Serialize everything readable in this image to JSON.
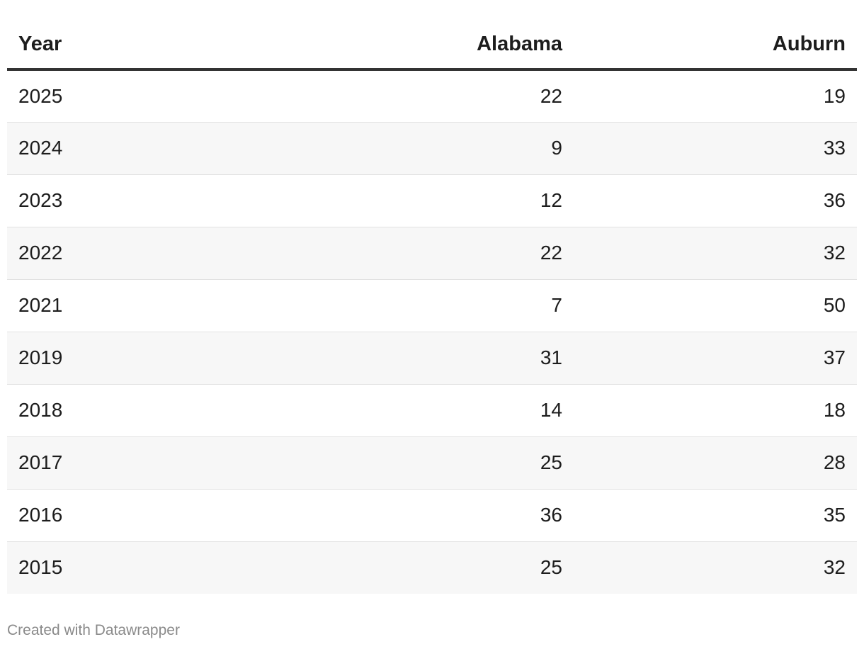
{
  "chart_data": {
    "type": "table",
    "columns": [
      "Year",
      "Alabama",
      "Auburn"
    ],
    "rows": [
      [
        "2025",
        "22",
        "19"
      ],
      [
        "2024",
        "9",
        "33"
      ],
      [
        "2023",
        "12",
        "36"
      ],
      [
        "2022",
        "22",
        "32"
      ],
      [
        "2021",
        "7",
        "50"
      ],
      [
        "2019",
        "31",
        "37"
      ],
      [
        "2018",
        "14",
        "18"
      ],
      [
        "2017",
        "25",
        "28"
      ],
      [
        "2016",
        "36",
        "35"
      ],
      [
        "2015",
        "25",
        "32"
      ]
    ]
  },
  "footer": {
    "credit": "Created with Datawrapper"
  }
}
